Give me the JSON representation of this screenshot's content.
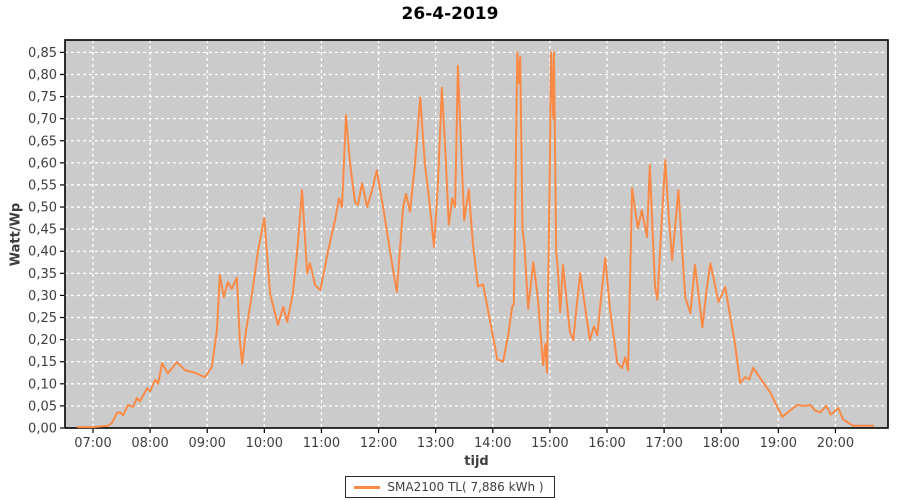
{
  "chart_data": {
    "type": "line",
    "title": "26-4-2019",
    "xlabel": "tijd",
    "ylabel": "Watt/Wp",
    "grid": true,
    "legend_position": "bottom",
    "colors": {
      "plot_bg": "#cbcbcb",
      "grid": "#ffffff",
      "axis": "#000000",
      "text": "#3e3e3e",
      "line": "#fb8a47"
    },
    "legend": {
      "label": "SMA2100 TL( 7,886 kWh )"
    },
    "xlim": [
      6.51,
      20.92
    ],
    "ylim": [
      0,
      0.878
    ],
    "x_ticks": [
      {
        "label": "07:00",
        "value": 7
      },
      {
        "label": "08:00",
        "value": 8
      },
      {
        "label": "09:00",
        "value": 9
      },
      {
        "label": "10:00",
        "value": 10
      },
      {
        "label": "11:00",
        "value": 11
      },
      {
        "label": "12:00",
        "value": 12
      },
      {
        "label": "13:00",
        "value": 13
      },
      {
        "label": "14:00",
        "value": 14
      },
      {
        "label": "15:00",
        "value": 15
      },
      {
        "label": "16:00",
        "value": 16
      },
      {
        "label": "17:00",
        "value": 17
      },
      {
        "label": "18:00",
        "value": 18
      },
      {
        "label": "19:00",
        "value": 19
      },
      {
        "label": "20:00",
        "value": 20
      }
    ],
    "y_ticks": [
      {
        "label": "0,00",
        "value": 0.0
      },
      {
        "label": "0,05",
        "value": 0.05
      },
      {
        "label": "0,10",
        "value": 0.1
      },
      {
        "label": "0,15",
        "value": 0.15
      },
      {
        "label": "0,20",
        "value": 0.2
      },
      {
        "label": "0,25",
        "value": 0.25
      },
      {
        "label": "0,30",
        "value": 0.3
      },
      {
        "label": "0,35",
        "value": 0.35
      },
      {
        "label": "0,40",
        "value": 0.4
      },
      {
        "label": "0,45",
        "value": 0.45
      },
      {
        "label": "0,50",
        "value": 0.5
      },
      {
        "label": "0,55",
        "value": 0.55
      },
      {
        "label": "0,60",
        "value": 0.6
      },
      {
        "label": "0,65",
        "value": 0.65
      },
      {
        "label": "0,70",
        "value": 0.7
      },
      {
        "label": "0,75",
        "value": 0.75
      },
      {
        "label": "0,80",
        "value": 0.8
      },
      {
        "label": "0,85",
        "value": 0.85
      }
    ],
    "series": [
      {
        "name": "SMA2100 TL( 7,886 kWh )",
        "points": [
          [
            6.74,
            0.002
          ],
          [
            7.0,
            0.002
          ],
          [
            7.26,
            0.005
          ],
          [
            7.33,
            0.011
          ],
          [
            7.42,
            0.034
          ],
          [
            7.47,
            0.036
          ],
          [
            7.53,
            0.029
          ],
          [
            7.61,
            0.052
          ],
          [
            7.7,
            0.048
          ],
          [
            7.77,
            0.068
          ],
          [
            7.82,
            0.06
          ],
          [
            7.95,
            0.09
          ],
          [
            8.0,
            0.083
          ],
          [
            8.09,
            0.109
          ],
          [
            8.14,
            0.1
          ],
          [
            8.21,
            0.147
          ],
          [
            8.31,
            0.124
          ],
          [
            8.47,
            0.149
          ],
          [
            8.61,
            0.131
          ],
          [
            8.79,
            0.125
          ],
          [
            8.96,
            0.115
          ],
          [
            9.08,
            0.138
          ],
          [
            9.17,
            0.22
          ],
          [
            9.22,
            0.346
          ],
          [
            9.29,
            0.296
          ],
          [
            9.36,
            0.33
          ],
          [
            9.43,
            0.315
          ],
          [
            9.52,
            0.34
          ],
          [
            9.57,
            0.2
          ],
          [
            9.61,
            0.145
          ],
          [
            9.68,
            0.22
          ],
          [
            9.78,
            0.3
          ],
          [
            9.89,
            0.4
          ],
          [
            10.0,
            0.475
          ],
          [
            10.1,
            0.305
          ],
          [
            10.24,
            0.233
          ],
          [
            10.33,
            0.274
          ],
          [
            10.4,
            0.24
          ],
          [
            10.5,
            0.305
          ],
          [
            10.59,
            0.42
          ],
          [
            10.66,
            0.538
          ],
          [
            10.75,
            0.35
          ],
          [
            10.8,
            0.373
          ],
          [
            10.89,
            0.323
          ],
          [
            10.98,
            0.312
          ],
          [
            11.12,
            0.403
          ],
          [
            11.24,
            0.471
          ],
          [
            11.31,
            0.52
          ],
          [
            11.36,
            0.5
          ],
          [
            11.43,
            0.708
          ],
          [
            11.5,
            0.6
          ],
          [
            11.59,
            0.51
          ],
          [
            11.64,
            0.505
          ],
          [
            11.71,
            0.554
          ],
          [
            11.8,
            0.5
          ],
          [
            11.89,
            0.54
          ],
          [
            11.97,
            0.583
          ],
          [
            12.08,
            0.5
          ],
          [
            12.2,
            0.4
          ],
          [
            12.32,
            0.308
          ],
          [
            12.43,
            0.5
          ],
          [
            12.48,
            0.53
          ],
          [
            12.55,
            0.49
          ],
          [
            12.64,
            0.6
          ],
          [
            12.73,
            0.748
          ],
          [
            12.81,
            0.6
          ],
          [
            12.9,
            0.5
          ],
          [
            12.97,
            0.41
          ],
          [
            13.04,
            0.55
          ],
          [
            13.11,
            0.77
          ],
          [
            13.18,
            0.6
          ],
          [
            13.23,
            0.46
          ],
          [
            13.29,
            0.52
          ],
          [
            13.34,
            0.5
          ],
          [
            13.39,
            0.82
          ],
          [
            13.44,
            0.65
          ],
          [
            13.5,
            0.47
          ],
          [
            13.58,
            0.54
          ],
          [
            13.65,
            0.42
          ],
          [
            13.74,
            0.32
          ],
          [
            13.83,
            0.325
          ],
          [
            13.95,
            0.244
          ],
          [
            14.08,
            0.155
          ],
          [
            14.18,
            0.15
          ],
          [
            14.27,
            0.21
          ],
          [
            14.34,
            0.275
          ],
          [
            14.37,
            0.28
          ],
          [
            14.43,
            0.85
          ],
          [
            14.46,
            0.78
          ],
          [
            14.48,
            0.84
          ],
          [
            14.52,
            0.45
          ],
          [
            14.55,
            0.42
          ],
          [
            14.62,
            0.27
          ],
          [
            14.71,
            0.375
          ],
          [
            14.79,
            0.294
          ],
          [
            14.88,
            0.142
          ],
          [
            14.92,
            0.19
          ],
          [
            14.95,
            0.125
          ],
          [
            15.0,
            0.6
          ],
          [
            15.02,
            0.85
          ],
          [
            15.06,
            0.7
          ],
          [
            15.07,
            0.85
          ],
          [
            15.11,
            0.4
          ],
          [
            15.14,
            0.357
          ],
          [
            15.18,
            0.262
          ],
          [
            15.23,
            0.369
          ],
          [
            15.3,
            0.28
          ],
          [
            15.35,
            0.217
          ],
          [
            15.41,
            0.199
          ],
          [
            15.48,
            0.29
          ],
          [
            15.53,
            0.35
          ],
          [
            15.62,
            0.27
          ],
          [
            15.7,
            0.199
          ],
          [
            15.77,
            0.23
          ],
          [
            15.83,
            0.21
          ],
          [
            15.9,
            0.3
          ],
          [
            15.97,
            0.385
          ],
          [
            16.05,
            0.27
          ],
          [
            16.18,
            0.147
          ],
          [
            16.26,
            0.136
          ],
          [
            16.32,
            0.16
          ],
          [
            16.37,
            0.13
          ],
          [
            16.44,
            0.543
          ],
          [
            16.54,
            0.452
          ],
          [
            16.61,
            0.493
          ],
          [
            16.7,
            0.432
          ],
          [
            16.75,
            0.595
          ],
          [
            16.84,
            0.319
          ],
          [
            16.88,
            0.29
          ],
          [
            16.95,
            0.45
          ],
          [
            17.02,
            0.606
          ],
          [
            17.07,
            0.5
          ],
          [
            17.14,
            0.38
          ],
          [
            17.25,
            0.538
          ],
          [
            17.37,
            0.296
          ],
          [
            17.46,
            0.26
          ],
          [
            17.54,
            0.369
          ],
          [
            17.67,
            0.228
          ],
          [
            17.74,
            0.31
          ],
          [
            17.81,
            0.373
          ],
          [
            17.88,
            0.33
          ],
          [
            17.95,
            0.285
          ],
          [
            18.07,
            0.319
          ],
          [
            18.24,
            0.192
          ],
          [
            18.33,
            0.102
          ],
          [
            18.42,
            0.115
          ],
          [
            18.49,
            0.11
          ],
          [
            18.56,
            0.136
          ],
          [
            18.73,
            0.104
          ],
          [
            18.86,
            0.08
          ],
          [
            18.94,
            0.059
          ],
          [
            19.07,
            0.025
          ],
          [
            19.21,
            0.04
          ],
          [
            19.33,
            0.052
          ],
          [
            19.47,
            0.05
          ],
          [
            19.56,
            0.052
          ],
          [
            19.64,
            0.04
          ],
          [
            19.73,
            0.035
          ],
          [
            19.84,
            0.05
          ],
          [
            19.92,
            0.03
          ],
          [
            20.05,
            0.045
          ],
          [
            20.13,
            0.02
          ],
          [
            20.2,
            0.014
          ],
          [
            20.31,
            0.005
          ],
          [
            20.66,
            0.005
          ]
        ]
      }
    ]
  }
}
